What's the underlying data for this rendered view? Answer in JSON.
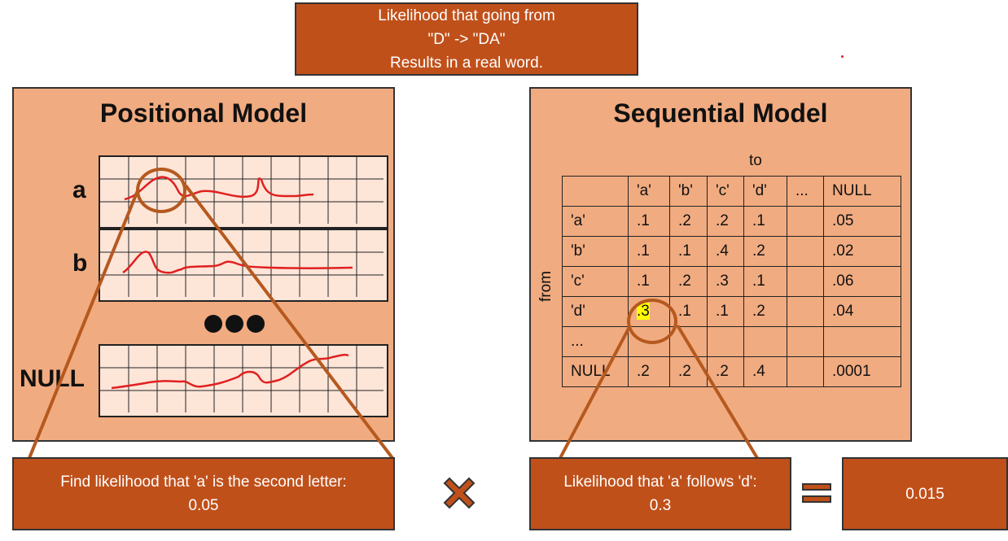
{
  "top_box": {
    "line1": "Likelihood that going from",
    "line2": "\"D\" -> \"DA\"",
    "line3": "Results in a real word."
  },
  "positional": {
    "title": "Positional Model",
    "rows": [
      {
        "label": "a"
      },
      {
        "label": "b"
      },
      {
        "label": "NULL"
      }
    ]
  },
  "sequential": {
    "title": "Sequential Model",
    "to_label": "to",
    "from_label": "from",
    "header": [
      "'a'",
      "'b'",
      "'c'",
      "'d'",
      "...",
      "NULL"
    ],
    "rows": [
      {
        "label": "'a'",
        "cells": [
          ".1",
          ".2",
          ".2",
          ".1",
          "",
          ".05"
        ]
      },
      {
        "label": "'b'",
        "cells": [
          ".1",
          ".1",
          ".4",
          ".2",
          "",
          ".02"
        ]
      },
      {
        "label": "'c'",
        "cells": [
          ".1",
          ".2",
          ".3",
          ".1",
          "",
          ".06"
        ]
      },
      {
        "label": "'d'",
        "cells": [
          ".3",
          ".1",
          ".1",
          ".2",
          "",
          ".04"
        ]
      },
      {
        "label": "...",
        "cells": [
          "",
          "",
          "",
          "",
          "",
          ""
        ]
      },
      {
        "label": "NULL",
        "cells": [
          ".2",
          ".2",
          ".2",
          ".4",
          "",
          ".0001"
        ]
      }
    ]
  },
  "bottom_left": {
    "line1": "Find likelihood that 'a' is the second letter:",
    "line2": "0.05"
  },
  "bottom_mid": {
    "line1": "Likelihood that 'a' follows 'd':",
    "line2": "0.3"
  },
  "result": {
    "value": "0.015"
  },
  "colors": {
    "dark_orange": "#c0501a",
    "light_orange": "#f1ab80",
    "highlight": "#ffff00",
    "curve_red": "#e02020"
  }
}
